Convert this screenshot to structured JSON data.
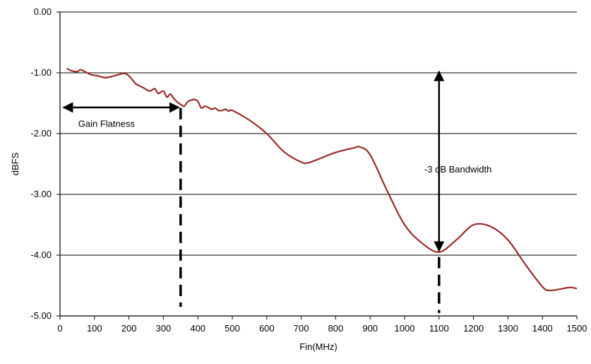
{
  "chart_data": {
    "type": "line",
    "xlabel": "Fin(MHz)",
    "ylabel": "dBFS",
    "xlim": [
      0,
      1500
    ],
    "ylim": [
      -5,
      0
    ],
    "xticks": [
      "0",
      "100",
      "200",
      "300",
      "400",
      "500",
      "600",
      "700",
      "800",
      "900",
      "1000",
      "1100",
      "1200",
      "1300",
      "1400",
      "1500"
    ],
    "xtick_values": [
      0,
      100,
      200,
      300,
      400,
      500,
      600,
      700,
      800,
      900,
      1000,
      1100,
      1200,
      1300,
      1400,
      1500
    ],
    "yticks": [
      "0.00",
      "-1.00",
      "-2.00",
      "-3.00",
      "-4.00",
      "-5.00"
    ],
    "ytick_values": [
      0,
      -1,
      -2,
      -3,
      -4,
      -5
    ],
    "grid": "horizontal",
    "line_color": "#9b2a26",
    "series": [
      {
        "x": [
          20,
          35,
          50,
          60,
          75,
          90,
          110,
          130,
          150,
          170,
          185,
          200,
          220,
          240,
          260,
          275,
          285,
          300,
          310,
          320,
          330,
          340,
          350,
          360,
          370,
          380,
          390,
          400,
          410,
          420,
          430,
          440,
          450,
          460,
          470,
          480,
          490,
          500,
          550,
          600,
          650,
          700,
          720,
          750,
          800,
          850,
          870,
          900,
          950,
          1000,
          1050,
          1100,
          1150,
          1200,
          1250,
          1300,
          1350,
          1400,
          1420,
          1450,
          1480,
          1500
        ],
        "y": [
          -0.93,
          -0.97,
          -0.98,
          -0.95,
          -0.99,
          -1.03,
          -1.05,
          -1.08,
          -1.06,
          -1.03,
          -1.01,
          -1.05,
          -1.18,
          -1.24,
          -1.3,
          -1.26,
          -1.34,
          -1.3,
          -1.4,
          -1.35,
          -1.42,
          -1.48,
          -1.52,
          -1.55,
          -1.48,
          -1.45,
          -1.44,
          -1.47,
          -1.58,
          -1.55,
          -1.57,
          -1.6,
          -1.58,
          -1.62,
          -1.62,
          -1.6,
          -1.63,
          -1.62,
          -1.78,
          -2.0,
          -2.3,
          -2.47,
          -2.48,
          -2.42,
          -2.31,
          -2.24,
          -2.22,
          -2.35,
          -2.95,
          -3.5,
          -3.8,
          -3.95,
          -3.75,
          -3.5,
          -3.53,
          -3.75,
          -4.15,
          -4.52,
          -4.58,
          -4.56,
          -4.53,
          -4.55
        ]
      }
    ],
    "annotations": [
      {
        "text": "Gain Flatness",
        "type": "double-arrow-horizontal",
        "x1": 10,
        "x2": 345,
        "y": -1.57,
        "text_at": [
          135,
          -1.83
        ]
      },
      {
        "text": "-3 dB Bandwidth",
        "type": "double-arrow-vertical",
        "x": 1100,
        "y1": -0.98,
        "y2": -3.93,
        "text_at": [
          1155,
          -2.58
        ]
      },
      {
        "type": "dashed-line",
        "x": 350,
        "y1": -1.58,
        "y2": -4.85
      },
      {
        "type": "dashed-line",
        "x": 1100,
        "y1": -4.03,
        "y2": -4.95
      }
    ]
  }
}
